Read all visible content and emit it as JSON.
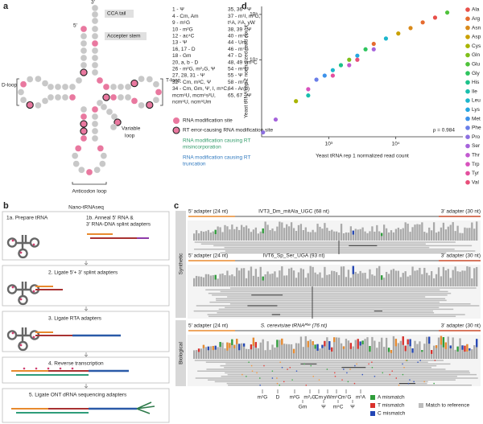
{
  "panel_labels": [
    "a",
    "b",
    "c",
    "d"
  ],
  "panel_a": {
    "structure_labels": {
      "three_prime": "3′",
      "five_prime": "5′",
      "cca_tail": "CCA tail",
      "acceptor_stem": "Accepter stem",
      "d_loop": "D-loop",
      "t_loop": "T-loop",
      "variable_loop": [
        "Variable",
        "loop"
      ],
      "anticodon_loop": "Anticodon loop"
    },
    "modifications_col1": [
      "1 - Ψ",
      "4 - Cm, Am",
      "9 - m¹G",
      "10 - m²G",
      "12 - ac⁴C",
      "13 - Ψ",
      "16, 17 - D",
      "18 - Gm",
      "20, a, b - D",
      "26 - m²G, m²₂G, Ψ",
      "27, 28, 31 - Ψ",
      "32 - Cm, m³C, Ψ",
      "34 - Cm, Gm, Ψ, I, m⁵C,",
      "mcm⁵U, mcm⁵s²U,",
      "ncm⁵U, ncm⁵Um"
    ],
    "modifications_col2": [
      "35, 36 - Ψ",
      "37 - m¹I, m¹G,",
      "t⁶A, i⁶A, yW",
      "38, 39 - Ψ",
      "40 - m⁵C",
      "44 - Um",
      "46 - m⁷G",
      "47 - D",
      "48, 49 - m⁵C",
      "54 - m⁵U",
      "55 - Ψ",
      "58 - m¹A",
      "64 - Ar(p)",
      "65, 67 - Ψ"
    ],
    "legend": {
      "modification_site": "RNA modification site",
      "rt_error_site": "RT error-causing RNA modification site",
      "misincorporation": [
        "RNA modification causing RT",
        "misincorporation"
      ],
      "truncation": [
        "RNA modification causing RT",
        "truncation"
      ]
    }
  },
  "panel_b": {
    "title": "Nano-tRNAseq",
    "step_1a": "1a. Prepare tRNA",
    "step_1b": [
      "1b. Anneal 5′ RNA & ",
      "3′ RNA-DNA splint adapters"
    ],
    "step_2": "2. Ligate 5′+ 3′ splint adapters",
    "step_3": "3. Ligate RTA adapters",
    "step_4": "4. Reverse transcription",
    "step_5": "5. Ligate ONT dRNA sequencing adapters"
  },
  "panel_c": {
    "group_labels": [
      "Synthetic",
      "Biological"
    ],
    "tracks": [
      {
        "left": "5′ adapter (24 nt)",
        "title": "IVT3_Dm_mitAla_UGC (68 nt)",
        "right": "3′ adapter (30 nt)"
      },
      {
        "left": "5′ adapter (24 nt)",
        "title": "IVT6_Sp_Ser_UGA (93 nt)",
        "right": "3′ adapter (30 nt)"
      },
      {
        "left": "5′ adapter (24 nt)",
        "title": "S. cerevisiae tRNAᴾʰᵉ (76 nt)",
        "right": "3′ adapter (30 nt)"
      }
    ],
    "modification_labels_upper": [
      "m¹G",
      "D",
      "m²G",
      "m²₂G",
      "Cm",
      "yW",
      "m⁵C",
      "m⁷G",
      "m¹A"
    ],
    "modification_labels_lower": [
      "Gm",
      "Ψ",
      "m⁵C",
      "Ψ"
    ],
    "legend": [
      {
        "label": "A mismatch",
        "color": "#2e9d3a"
      },
      {
        "label": "T mismatch",
        "color": "#d9302c"
      },
      {
        "label": "C mismatch",
        "color": "#2346b5"
      },
      {
        "label": "Match to reference",
        "color": "#bdbdbd"
      }
    ]
  },
  "chart_data": {
    "type": "scatter",
    "x_label": "Yeast tRNA rep 1 normalized read count",
    "y_label": "Yeast tRNA rep 2 normalized read count",
    "log_x": true,
    "log_y": true,
    "xlim": [
      100,
      100000
    ],
    "ylim": [
      200,
      150000
    ],
    "xticks": [
      {
        "value": 1000,
        "label": "10³"
      },
      {
        "value": 10000,
        "label": "10⁴"
      }
    ],
    "yticks": [
      {
        "value": 10000,
        "label": "10⁴"
      },
      {
        "value": 100000,
        "label": "10⁵"
      }
    ],
    "annotation": "ρ = 0.984",
    "legend": "right",
    "series": [
      {
        "name": "Ala",
        "color": "#e8504a",
        "x": [
          38500
        ],
        "values": [
          85000
        ]
      },
      {
        "name": "Arg",
        "color": "#e56b2f",
        "x": [
          25200,
          4690
        ],
        "values": [
          66800,
          22400
        ]
      },
      {
        "name": "Asn",
        "color": "#d98a1a",
        "x": [
          16600
        ],
        "values": [
          50000
        ]
      },
      {
        "name": "Asp",
        "color": "#c9a000",
        "x": [
          10900
        ],
        "values": [
          38000
        ]
      },
      {
        "name": "Cys",
        "color": "#a8b400",
        "x": [
          325
        ],
        "values": [
          1220
        ]
      },
      {
        "name": "Gln",
        "color": "#7fbf1a",
        "x": [
          2020
        ],
        "values": [
          10000
        ]
      },
      {
        "name": "Glu",
        "color": "#4fc23a",
        "x": [
          58500
        ],
        "values": [
          110000
        ]
      },
      {
        "name": "Gly",
        "color": "#2ec45e",
        "x": [
          3540
        ],
        "values": [
          17000
        ]
      },
      {
        "name": "His",
        "color": "#1cc28a",
        "x": [
          1520
        ],
        "values": [
          7590
        ]
      },
      {
        "name": "Ile",
        "color": "#19bfae",
        "x": [
          495
        ],
        "values": [
          1630
        ]
      },
      {
        "name": "Leu",
        "color": "#1cb6cc",
        "x": [
          7130,
          1150
        ],
        "values": [
          29400,
          5890
        ]
      },
      {
        "name": "Lys",
        "color": "#26a6e0",
        "x": [
          2670
        ],
        "values": [
          12300
        ]
      },
      {
        "name": "Met",
        "color": "#3d92ea",
        "x": [
          870
        ],
        "values": [
          4470
        ]
      },
      {
        "name": "Phe",
        "color": "#6a7ee8",
        "x": [
          656
        ],
        "values": [
          3640
        ]
      },
      {
        "name": "Pro",
        "color": "#8c6fe0",
        "x": [
          105
        ],
        "values": [
          250
        ]
      },
      {
        "name": "Ser",
        "color": "#a563db",
        "x": [
          162,
          4690
        ],
        "values": [
          480,
          17000
        ]
      },
      {
        "name": "Thr",
        "color": "#c25ad0",
        "x": [
          2020
        ],
        "values": [
          7590
        ]
      },
      {
        "name": "Trp",
        "color": "#d852bd",
        "x": [
          495
        ],
        "values": [
          2240
        ]
      },
      {
        "name": "Tyr",
        "color": "#e34f9e",
        "x": [
          1150
        ],
        "values": [
          4470
        ]
      },
      {
        "name": "Val",
        "color": "#e84f7a",
        "x": [
          2670
        ],
        "values": [
          10000
        ]
      }
    ]
  }
}
